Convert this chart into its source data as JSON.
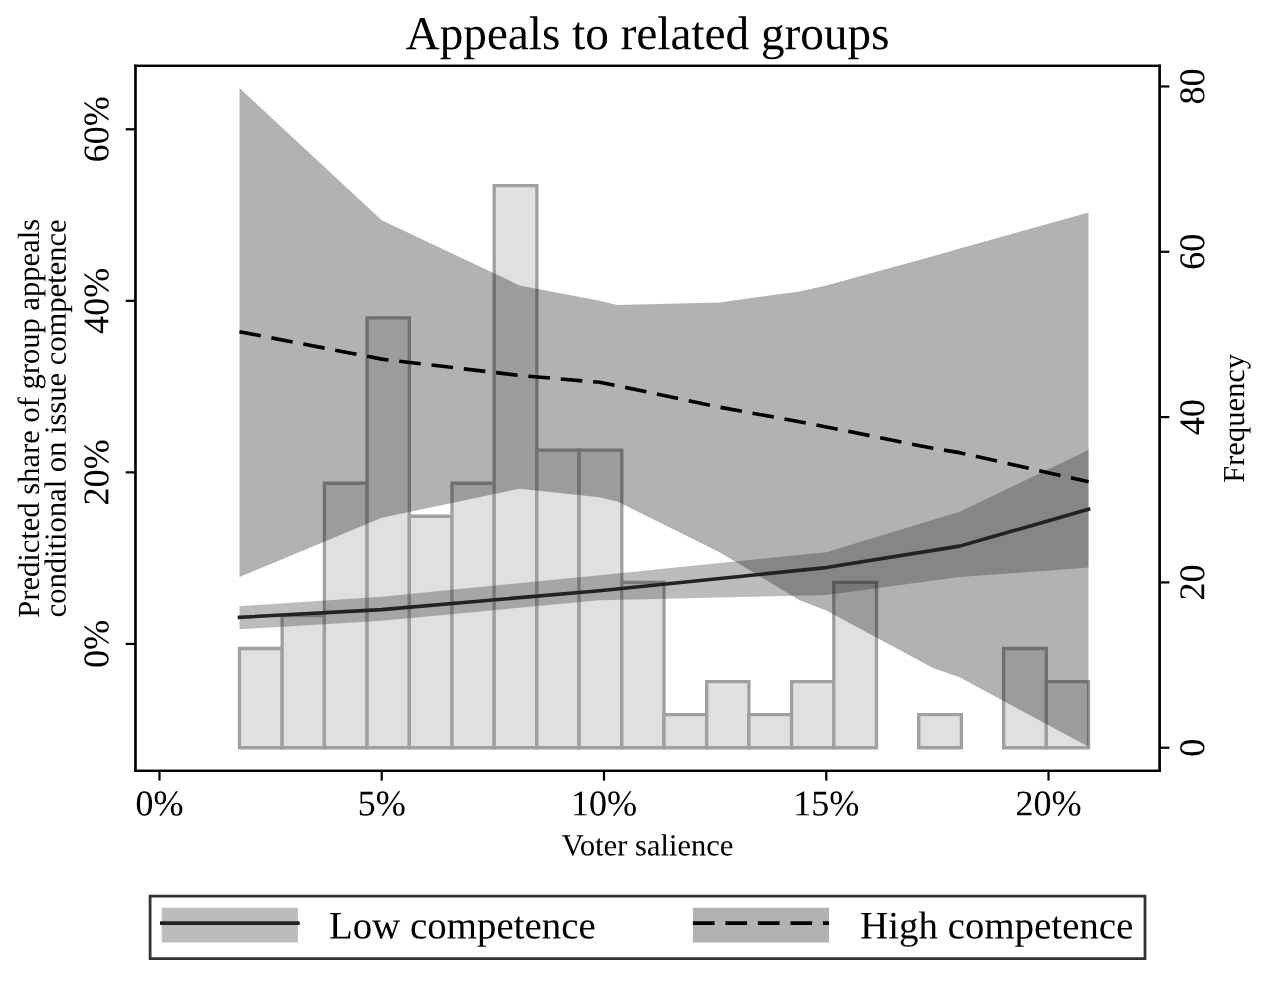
{
  "chart_data": {
    "type": "line",
    "title": "Appeals to related groups",
    "xlabel": "Voter salience",
    "ylabel": "Predicted share of group appeals\nconditional on issue competence",
    "y2label": "Frequency",
    "xlim": [
      -0.54,
      22.5
    ],
    "xticks": [
      {
        "value": 0,
        "label": "0%"
      },
      {
        "value": 5,
        "label": "5%"
      },
      {
        "value": 10,
        "label": "10%"
      },
      {
        "value": 15,
        "label": "15%"
      },
      {
        "value": 20,
        "label": "20%"
      }
    ],
    "ylim": [
      -14.8,
      67.4
    ],
    "yticks": [
      {
        "value": 0,
        "label": "0%"
      },
      {
        "value": 20,
        "label": "20%"
      },
      {
        "value": 40,
        "label": "40%"
      },
      {
        "value": 60,
        "label": "60%"
      }
    ],
    "y2lim": [
      -2.8,
      82.5
    ],
    "y2ticks": [
      0,
      20,
      40,
      60,
      80
    ],
    "grid": false,
    "legend": "bottom",
    "series": [
      {
        "type": "histogram",
        "axis": "y2",
        "color": "#e0e0e0",
        "bins": [
          1.8,
          2.76,
          3.71,
          4.67,
          5.62,
          6.58,
          7.53,
          8.49,
          9.44,
          10.4,
          11.35,
          12.31,
          13.26,
          14.22,
          15.17,
          16.13,
          17.08,
          18.04,
          18.99,
          19.95,
          20.9
        ],
        "values": [
          12,
          16,
          32,
          52,
          28,
          32,
          68,
          36,
          36,
          20,
          4,
          8,
          4,
          8,
          20,
          0,
          4,
          0,
          12,
          8
        ]
      },
      {
        "name": "High competence",
        "color": "#000000",
        "line_style": "dashed",
        "x": [
          1.8,
          5.0,
          8.1,
          9.9,
          10.3,
          12.6,
          14.4,
          15.0,
          17.4,
          18.0,
          20.9
        ],
        "values": [
          36.4,
          33.2,
          31.3,
          30.5,
          30.1,
          27.6,
          25.9,
          25.3,
          22.8,
          22.3,
          18.9
        ],
        "upper": [
          64.8,
          49.4,
          41.8,
          40.0,
          39.5,
          39.8,
          41.1,
          41.8,
          45.2,
          46.1,
          50.3
        ],
        "lower": [
          7.8,
          14.7,
          18.1,
          17.1,
          16.6,
          10.7,
          5.1,
          3.9,
          -2.8,
          -3.9,
          -12.0
        ]
      },
      {
        "name": "Low competence",
        "color": "#222222",
        "line_style": "solid",
        "x": [
          1.8,
          5.0,
          9.9,
          15.0,
          18.0,
          20.9
        ],
        "values": [
          3.1,
          4.0,
          6.2,
          8.9,
          11.4,
          15.7
        ],
        "upper": [
          4.4,
          5.5,
          8.0,
          10.7,
          15.4,
          22.6
        ],
        "lower": [
          1.7,
          2.7,
          5.1,
          5.7,
          7.8,
          8.9
        ]
      }
    ]
  }
}
